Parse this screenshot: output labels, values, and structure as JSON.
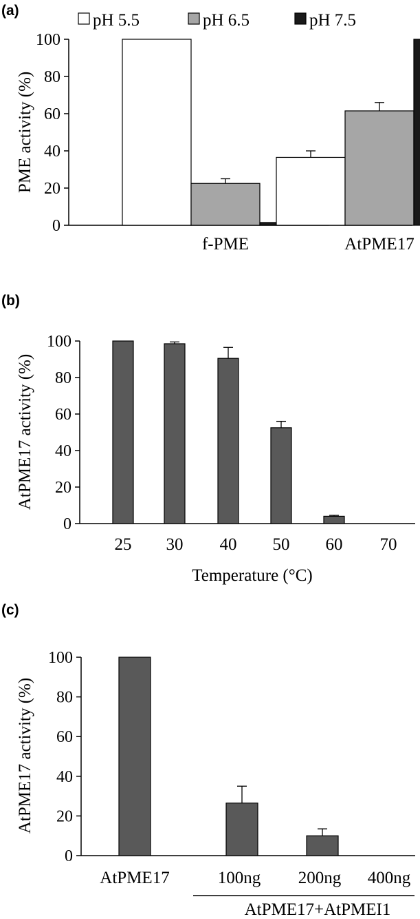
{
  "chart_data": [
    {
      "panel": "(a)",
      "type": "bar",
      "ylabel": "PME activity (%)",
      "xlabel": "",
      "ylim": [
        0,
        100
      ],
      "yticks": [
        0,
        20,
        40,
        60,
        80,
        100
      ],
      "categories": [
        "f-PME",
        "AtPME17"
      ],
      "legend_position": "top",
      "series": [
        {
          "name": "pH 5.5",
          "color": "#ffffff",
          "values": [
            100,
            36.5
          ],
          "errors": [
            0,
            3.5
          ]
        },
        {
          "name": "pH 6.5",
          "color": "#a6a6a6",
          "values": [
            22.5,
            61.5
          ],
          "errors": [
            2.5,
            4.5
          ]
        },
        {
          "name": "pH 7.5",
          "color": "#1a1a1a",
          "values": [
            1.5,
            100
          ],
          "errors": [
            0,
            0
          ]
        }
      ]
    },
    {
      "panel": "(b)",
      "type": "bar",
      "ylabel": "AtPME17 activity (%)",
      "xlabel": "Temperature (°C)",
      "ylim": [
        0,
        100
      ],
      "yticks": [
        0,
        20,
        40,
        60,
        80,
        100
      ],
      "categories": [
        "25",
        "30",
        "40",
        "50",
        "60",
        "70"
      ],
      "series": [
        {
          "color": "#595959",
          "values": [
            100,
            98.5,
            90.5,
            52.5,
            4,
            0
          ],
          "errors": [
            0,
            1,
            6,
            3.5,
            0.5,
            0
          ]
        }
      ]
    },
    {
      "panel": "(c)",
      "type": "bar",
      "ylabel": "AtPME17 activity (%)",
      "xlabel": "",
      "ylim": [
        0,
        100
      ],
      "yticks": [
        0,
        20,
        40,
        60,
        80,
        100
      ],
      "categories": [
        "AtPME17",
        "100ng",
        "200ng",
        "400ng"
      ],
      "group_label": "AtPME17+AtPMEI1",
      "series": [
        {
          "color": "#595959",
          "values": [
            100,
            26.5,
            10,
            0
          ],
          "errors": [
            0,
            8.5,
            3.5,
            0
          ]
        }
      ]
    }
  ]
}
